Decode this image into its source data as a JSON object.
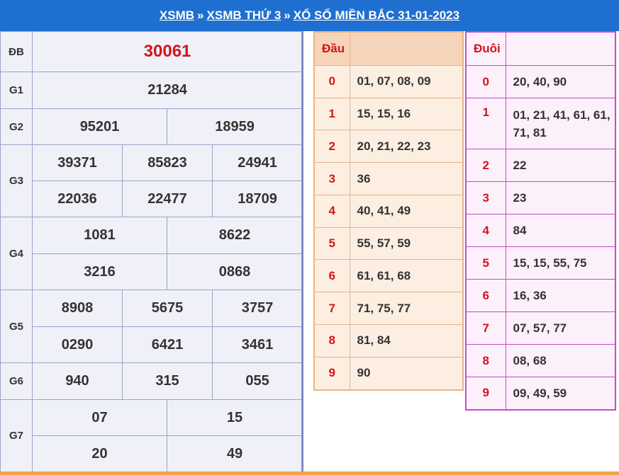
{
  "header": {
    "crumb1": "XSMB",
    "crumb2": "XSMB THỨ 3",
    "crumb3": "XỔ SỐ MIỀN BẮC 31-01-2023",
    "separator": "»"
  },
  "results": {
    "db": {
      "label": "ĐB",
      "value": "30061"
    },
    "g1": {
      "label": "G1",
      "value": "21284"
    },
    "g2": {
      "label": "G2",
      "values": [
        "95201",
        "18959"
      ]
    },
    "g3": {
      "label": "G3",
      "values": [
        "39371",
        "85823",
        "24941",
        "22036",
        "22477",
        "18709"
      ]
    },
    "g4": {
      "label": "G4",
      "values": [
        "1081",
        "8622",
        "3216",
        "0868"
      ]
    },
    "g5": {
      "label": "G5",
      "values": [
        "8908",
        "5675",
        "3757",
        "0290",
        "6421",
        "3461"
      ]
    },
    "g6": {
      "label": "G6",
      "values": [
        "940",
        "315",
        "055"
      ]
    },
    "g7": {
      "label": "G7",
      "values": [
        "07",
        "15",
        "20",
        "49"
      ]
    }
  },
  "dau": {
    "title": "Đầu",
    "rows": [
      {
        "k": "0",
        "v": "01, 07, 08, 09"
      },
      {
        "k": "1",
        "v": "15, 15, 16"
      },
      {
        "k": "2",
        "v": "20, 21, 22, 23"
      },
      {
        "k": "3",
        "v": "36"
      },
      {
        "k": "4",
        "v": "40, 41, 49"
      },
      {
        "k": "5",
        "v": "55, 57, 59"
      },
      {
        "k": "6",
        "v": "61, 61, 68"
      },
      {
        "k": "7",
        "v": "71, 75, 77"
      },
      {
        "k": "8",
        "v": "81, 84"
      },
      {
        "k": "9",
        "v": "90"
      }
    ]
  },
  "duoi": {
    "title": "Đuôi",
    "rows": [
      {
        "k": "0",
        "v": "20, 40, 90"
      },
      {
        "k": "1",
        "v": "01, 21, 41, 61, 61, 71, 81"
      },
      {
        "k": "2",
        "v": "22"
      },
      {
        "k": "3",
        "v": "23"
      },
      {
        "k": "4",
        "v": "84"
      },
      {
        "k": "5",
        "v": "15, 15, 55, 75"
      },
      {
        "k": "6",
        "v": "16, 36"
      },
      {
        "k": "7",
        "v": "07, 57, 77"
      },
      {
        "k": "8",
        "v": "08, 68"
      },
      {
        "k": "9",
        "v": "09, 49, 59"
      }
    ]
  },
  "colors": {
    "header_bg": "#1f6fd1",
    "accent_red": "#d2141c",
    "dau_border": "#e8b386",
    "duoi_border": "#c64bc6"
  }
}
